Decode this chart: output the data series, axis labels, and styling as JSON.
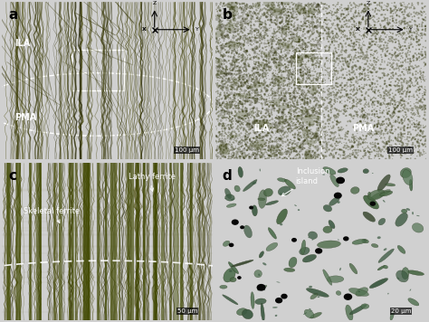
{
  "figure_bg": "#d0d0d0",
  "panel_labels": [
    "a",
    "b",
    "c",
    "d"
  ],
  "panel_label_fontsize": 11,
  "panel_label_color": "black",
  "panel_label_weight": "bold",
  "colors": {
    "bg_olive": "#b8bc14",
    "bg_olive2": "#c0c418",
    "bg_olive3": "#b4b810",
    "bg_olive4": "#c8cc1c",
    "stripe_dark": "#404000",
    "stripe_mid": "#606010",
    "inset_bg": "#c8d400",
    "white": "#ffffff",
    "black": "#000000",
    "dark_olive": "#282c00",
    "teal_island": "#4a7050",
    "teal_edge": "#2a4830",
    "dot_black": "#080808"
  },
  "annotation_fontsize": 6,
  "label_fontsize": 7,
  "scalebar_fontsize": 5,
  "panel_label_size": 11
}
